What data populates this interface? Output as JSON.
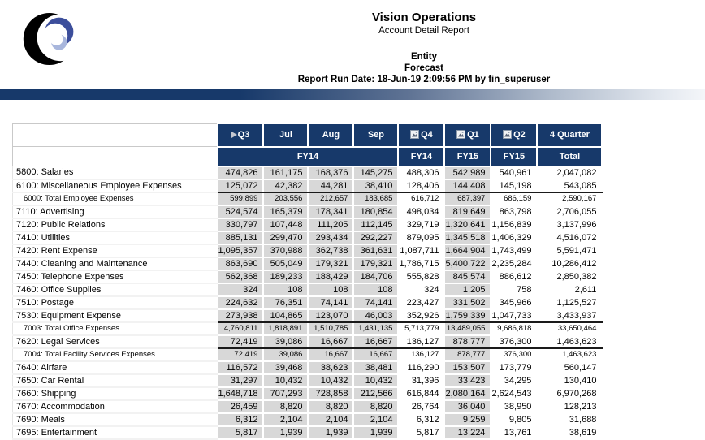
{
  "report": {
    "title": "Vision Operations",
    "subtitle": "Account Detail Report",
    "entity_label": "Entity",
    "scenario_label": "Forecast",
    "run_date_line": "Report Run Date: 18-Jun-19 2:09:56 PM by fin_superuser"
  },
  "colors": {
    "header_navy": "#17396A",
    "cell_gray": "#D8D8D8",
    "logo_black": "#000000",
    "logo_blue": "#3C4E9B",
    "logo_light_blue": "#A8B6DC"
  },
  "table": {
    "month_group_year": "FY14",
    "columns": [
      {
        "label": "Q3",
        "year": "FY14",
        "icon": "expand-triangle-icon",
        "shaded": true
      },
      {
        "label": "Jul",
        "year": "FY14",
        "icon": null,
        "shaded": true
      },
      {
        "label": "Aug",
        "year": "FY14",
        "icon": null,
        "shaded": true
      },
      {
        "label": "Sep",
        "year": "FY14",
        "icon": null,
        "shaded": true
      },
      {
        "label": "Q4",
        "year": "FY14",
        "icon": "image-placeholder-icon",
        "shaded": false
      },
      {
        "label": "Q1",
        "year": "FY15",
        "icon": "image-placeholder-icon",
        "shaded": true
      },
      {
        "label": "Q2",
        "year": "FY15",
        "icon": "image-placeholder-icon",
        "shaded": false
      },
      {
        "label": "4 Quarter",
        "year": "Total",
        "icon": null,
        "shaded": false
      }
    ],
    "rows": [
      {
        "label": "5800: Salaries",
        "type": "data",
        "pre_total": false,
        "values": [
          "474,826",
          "161,175",
          "168,376",
          "145,275",
          "488,306",
          "542,989",
          "540,961",
          "2,047,082"
        ]
      },
      {
        "label": "6100: Miscellaneous Employee Expenses",
        "type": "data",
        "pre_total": true,
        "values": [
          "125,072",
          "42,382",
          "44,281",
          "38,410",
          "128,406",
          "144,408",
          "145,198",
          "543,085"
        ]
      },
      {
        "label": "6000: Total Employee Expenses",
        "type": "total",
        "pre_total": false,
        "values": [
          "599,899",
          "203,556",
          "212,657",
          "183,685",
          "616,712",
          "687,397",
          "686,159",
          "2,590,167"
        ]
      },
      {
        "label": "7110: Advertising",
        "type": "data",
        "pre_total": false,
        "values": [
          "524,574",
          "165,379",
          "178,341",
          "180,854",
          "498,034",
          "819,649",
          "863,798",
          "2,706,055"
        ]
      },
      {
        "label": "7120: Public Relations",
        "type": "data",
        "pre_total": false,
        "values": [
          "330,797",
          "107,448",
          "111,205",
          "112,145",
          "329,719",
          "1,320,641",
          "1,156,839",
          "3,137,996"
        ]
      },
      {
        "label": "7410: Utilities",
        "type": "data",
        "pre_total": false,
        "values": [
          "885,131",
          "299,470",
          "293,434",
          "292,227",
          "879,095",
          "1,345,518",
          "1,406,329",
          "4,516,072"
        ]
      },
      {
        "label": "7420: Rent Expense",
        "type": "data",
        "pre_total": false,
        "values": [
          "1,095,357",
          "370,988",
          "362,738",
          "361,631",
          "1,087,711",
          "1,664,904",
          "1,743,499",
          "5,591,471"
        ]
      },
      {
        "label": "7440: Cleaning and Maintenance",
        "type": "data",
        "pre_total": false,
        "values": [
          "863,690",
          "505,049",
          "179,321",
          "179,321",
          "1,786,715",
          "5,400,722",
          "2,235,284",
          "10,286,412"
        ]
      },
      {
        "label": "7450: Telephone Expenses",
        "type": "data",
        "pre_total": false,
        "values": [
          "562,368",
          "189,233",
          "188,429",
          "184,706",
          "555,828",
          "845,574",
          "886,612",
          "2,850,382"
        ]
      },
      {
        "label": "7460: Office Supplies",
        "type": "data",
        "pre_total": false,
        "values": [
          "324",
          "108",
          "108",
          "108",
          "324",
          "1,205",
          "758",
          "2,611"
        ]
      },
      {
        "label": "7510: Postage",
        "type": "data",
        "pre_total": false,
        "values": [
          "224,632",
          "76,351",
          "74,141",
          "74,141",
          "223,427",
          "331,502",
          "345,966",
          "1,125,527"
        ]
      },
      {
        "label": "7530: Equipment Expense",
        "type": "data",
        "pre_total": true,
        "values": [
          "273,938",
          "104,865",
          "123,070",
          "46,003",
          "352,926",
          "1,759,339",
          "1,047,733",
          "3,433,937"
        ]
      },
      {
        "label": "7003: Total Office Expenses",
        "type": "total",
        "pre_total": false,
        "values": [
          "4,760,811",
          "1,818,891",
          "1,510,785",
          "1,431,135",
          "5,713,779",
          "13,489,055",
          "9,686,818",
          "33,650,464"
        ]
      },
      {
        "label": "7620: Legal Services",
        "type": "data",
        "pre_total": true,
        "values": [
          "72,419",
          "39,086",
          "16,667",
          "16,667",
          "136,127",
          "878,777",
          "376,300",
          "1,463,623"
        ]
      },
      {
        "label": "7004: Total Facility Services Expenses",
        "type": "total",
        "pre_total": false,
        "values": [
          "72,419",
          "39,086",
          "16,667",
          "16,667",
          "136,127",
          "878,777",
          "376,300",
          "1,463,623"
        ]
      },
      {
        "label": "7640: Airfare",
        "type": "data",
        "pre_total": false,
        "values": [
          "116,572",
          "39,468",
          "38,623",
          "38,481",
          "116,290",
          "153,507",
          "173,779",
          "560,147"
        ]
      },
      {
        "label": "7650: Car Rental",
        "type": "data",
        "pre_total": false,
        "values": [
          "31,297",
          "10,432",
          "10,432",
          "10,432",
          "31,396",
          "33,423",
          "34,295",
          "130,410"
        ]
      },
      {
        "label": "7660: Shipping",
        "type": "data",
        "pre_total": false,
        "values": [
          "1,648,718",
          "707,293",
          "728,858",
          "212,566",
          "616,844",
          "2,080,164",
          "2,624,543",
          "6,970,268"
        ]
      },
      {
        "label": "7670: Accommodation",
        "type": "data",
        "pre_total": false,
        "values": [
          "26,459",
          "8,820",
          "8,820",
          "8,820",
          "26,764",
          "36,040",
          "38,950",
          "128,213"
        ]
      },
      {
        "label": "7690: Meals",
        "type": "data",
        "pre_total": false,
        "values": [
          "6,312",
          "2,104",
          "2,104",
          "2,104",
          "6,312",
          "9,259",
          "9,805",
          "31,688"
        ]
      },
      {
        "label": "7695: Entertainment",
        "type": "data",
        "pre_total": false,
        "values": [
          "5,817",
          "1,939",
          "1,939",
          "1,939",
          "5,817",
          "13,224",
          "13,761",
          "38,619"
        ]
      }
    ]
  }
}
